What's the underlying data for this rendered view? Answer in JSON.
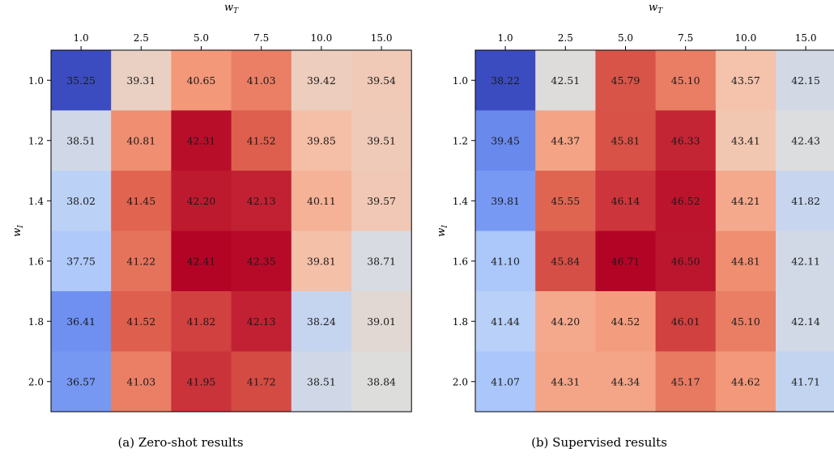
{
  "chart_data": [
    {
      "type": "heatmap",
      "caption": "(a) Zero-shot results",
      "xlabel": "w_T",
      "ylabel": "w_I",
      "x": [
        "1.0",
        "2.5",
        "5.0",
        "7.5",
        "10.0",
        "15.0"
      ],
      "y": [
        "1.0",
        "1.2",
        "1.4",
        "1.6",
        "1.8",
        "2.0"
      ],
      "values": [
        [
          35.25,
          39.31,
          40.65,
          41.03,
          39.42,
          39.54
        ],
        [
          38.51,
          40.81,
          42.31,
          41.52,
          39.85,
          39.51
        ],
        [
          38.02,
          41.45,
          42.2,
          42.13,
          40.11,
          39.57
        ],
        [
          37.75,
          41.22,
          42.41,
          42.35,
          39.81,
          38.71
        ],
        [
          36.41,
          41.52,
          41.82,
          42.13,
          38.24,
          39.01
        ],
        [
          36.57,
          41.03,
          41.95,
          41.72,
          38.51,
          38.84
        ]
      ],
      "colormap": "coolwarm"
    },
    {
      "type": "heatmap",
      "caption": "(b) Supervised results",
      "xlabel": "w_T",
      "ylabel": "w_I",
      "x": [
        "1.0",
        "2.5",
        "5.0",
        "7.5",
        "10.0",
        "15.0"
      ],
      "y": [
        "1.0",
        "1.2",
        "1.4",
        "1.6",
        "1.8",
        "2.0"
      ],
      "values": [
        [
          38.22,
          42.51,
          45.79,
          45.1,
          43.57,
          42.15
        ],
        [
          39.45,
          44.37,
          45.81,
          46.33,
          43.41,
          42.43
        ],
        [
          39.81,
          45.55,
          46.14,
          46.52,
          44.21,
          41.82
        ],
        [
          41.1,
          45.84,
          46.71,
          46.5,
          44.81,
          42.11
        ],
        [
          41.44,
          44.2,
          44.52,
          46.01,
          45.1,
          42.14
        ],
        [
          41.07,
          44.31,
          44.34,
          45.17,
          44.62,
          41.71
        ]
      ],
      "colormap": "coolwarm"
    }
  ],
  "colors": {
    "low": "#3b4cc0",
    "mid": "#dddddd",
    "high": "#b40426",
    "text": "#1a1a1a"
  }
}
